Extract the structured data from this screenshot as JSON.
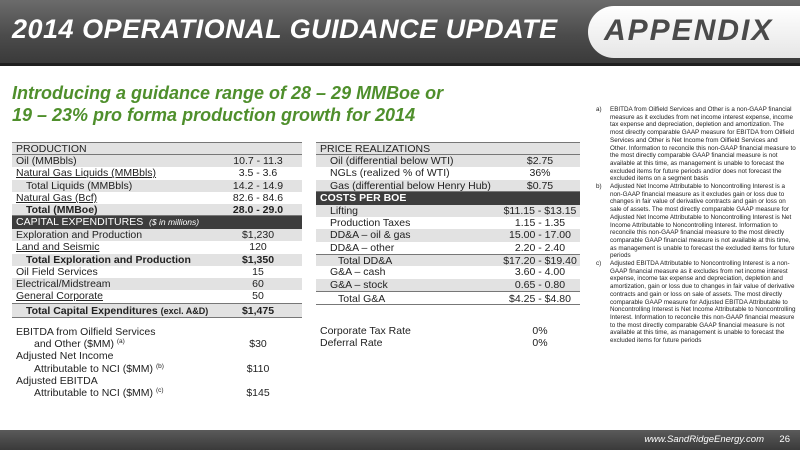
{
  "header": {
    "title": "2014 OPERATIONAL GUIDANCE UPDATE",
    "badge": "APPENDIX"
  },
  "headline": {
    "line1": "Introducing a guidance range of 28 – 29 MMBoe or",
    "line2": "19 – 23% pro forma production growth for 2014"
  },
  "production": {
    "header": "PRODUCTION",
    "rows": [
      {
        "label": "Oil (MMBbls)",
        "value": "10.7 - 11.3"
      },
      {
        "label": "Natural Gas Liquids (MMBbls)",
        "value": "3.5 - 3.6"
      },
      {
        "label": "Total Liquids (MMBbls)",
        "value": "14.2 - 14.9"
      },
      {
        "label": "Natural Gas (Bcf)",
        "value": "82.6 - 84.6"
      },
      {
        "label": "Total (MMBoe)",
        "value": "28.0 - 29.0"
      }
    ]
  },
  "capex": {
    "header": "CAPITAL EXPENDITURES",
    "header_note": "($ in millions)",
    "rows": [
      {
        "label": "Exploration and Production",
        "value": "$1,230"
      },
      {
        "label": "Land and Seismic",
        "value": "120"
      },
      {
        "label": "Total Exploration and Production",
        "value": "$1,350"
      },
      {
        "label": "Oil Field Services",
        "value": "15"
      },
      {
        "label": "Electrical/Midstream",
        "value": "60"
      },
      {
        "label": "General Corporate",
        "value": "50"
      },
      {
        "label": "Total Capital Expenditures",
        "label_suffix": "(excl. A&D)",
        "value": "$1,475"
      }
    ]
  },
  "other": [
    {
      "line1": "EBITDA from Oilfield Services",
      "line2": "and Other ($MM)",
      "note": "(a)",
      "value": "$30"
    },
    {
      "line1": "Adjusted Net Income",
      "line2": "Attributable to NCI ($MM)",
      "note": "(b)",
      "value": "$110"
    },
    {
      "line1": "Adjusted EBITDA",
      "line2": "Attributable to NCI ($MM)",
      "note": "(c)",
      "value": "$145"
    }
  ],
  "price_realizations": {
    "header": "PRICE REALIZATIONS",
    "rows": [
      {
        "label": "Oil (differential below WTI)",
        "value": "$2.75"
      },
      {
        "label": "NGLs (realized % of WTI)",
        "value": "36%"
      },
      {
        "label": "Gas  (differential below Henry Hub)",
        "value": "$0.75"
      }
    ]
  },
  "costs": {
    "header": "COSTS PER BOE",
    "rows": [
      {
        "label": "Lifting",
        "value": "$11.15 - $13.15"
      },
      {
        "label": "Production Taxes",
        "value": "1.15 - 1.35"
      },
      {
        "label": "DD&A – oil & gas",
        "value": "15.00 - 17.00"
      },
      {
        "label": "DD&A – other",
        "value": "2.20 - 2.40"
      },
      {
        "label": "Total DD&A",
        "value": "$17.20 - $19.40"
      },
      {
        "label": "G&A – cash",
        "value": "3.60 - 4.00"
      },
      {
        "label": "G&A – stock",
        "value": "0.65 - 0.80"
      },
      {
        "label": "Total G&A",
        "value": "$4.25 - $4.80"
      }
    ]
  },
  "tax": [
    {
      "label": "Corporate Tax Rate",
      "value": "0%"
    },
    {
      "label": "Deferral Rate",
      "value": "0%"
    }
  ],
  "footnotes": [
    {
      "key": "a)",
      "text": "EBITDA from Oilfield Services and Other is a non-GAAP financial measure as it excludes from net income interest expense, income tax expense and depreciation, depletion and amortization. The most directly comparable GAAP measure for EBITDA from Oilfield Services and Other is Net Income from Oilfield Services and Other. Information to reconcile this non-GAAP financial measure to the most directly comparable GAAP financial measure is not available at this time, as management is unable to forecast the excluded items for future periods and/or does not forecast the excluded items on a segment basis"
    },
    {
      "key": "b)",
      "text": "Adjusted Net Income Attributable to Noncontrolling Interest is a non-GAAP financial measure as it excludes gain or loss due to changes in fair value of derivative contracts and gain or loss on sale of assets. The most directly comparable GAAP measure for Adjusted Net Income Attributable to Noncontrolling Interest is Net Income Attributable to Noncontrolling Interest. Information to reconcile this non-GAAP financial measure to the most directly comparable GAAP financial measure is not available at this time, as management is unable to forecast the excluded items for future periods"
    },
    {
      "key": "c)",
      "text": "Adjusted EBITDA Attributable to Noncontrolling Interest is a non-GAAP financial measure as it excludes from net income interest expense, income tax expense and depreciation, depletion and amortization, gain or loss due to changes in fair value of derivative contracts and gain or loss on sale of assets. The most directly comparable GAAP measure for Adjusted EBITDA Attributable to Noncontrolling Interest is Net Income Attributable to Noncontrolling Interest. Information to reconcile this non-GAAP financial measure to the most directly comparable GAAP financial measure is not available at this time, as management is unable to forecast the excluded items for future periods"
    }
  ],
  "footer": {
    "url": "www.SandRidgeEnergy.com",
    "page": "26"
  }
}
